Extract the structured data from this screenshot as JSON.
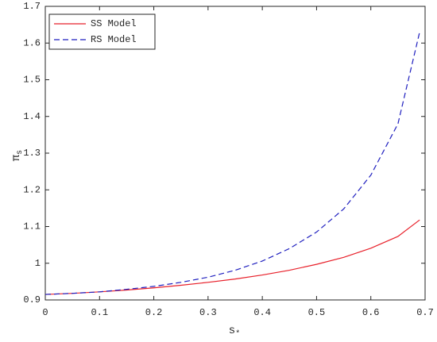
{
  "chart_data": {
    "type": "line",
    "xlabel": "s",
    "xlabel_sub": "*",
    "ylabel": "π",
    "ylabel_sub": "s",
    "x": [
      0,
      0.05,
      0.1,
      0.15,
      0.2,
      0.25,
      0.3,
      0.35,
      0.4,
      0.45,
      0.5,
      0.55,
      0.6,
      0.65,
      0.69
    ],
    "series": [
      {
        "name": "SS Model",
        "color": "#e8202a",
        "dash": false,
        "values": [
          0.915,
          0.918,
          0.922,
          0.927,
          0.933,
          0.94,
          0.948,
          0.957,
          0.968,
          0.981,
          0.997,
          1.016,
          1.041,
          1.073,
          1.118
        ]
      },
      {
        "name": "RS Model",
        "color": "#1f1fbf",
        "dash": true,
        "values": [
          0.915,
          0.918,
          0.922,
          0.929,
          0.937,
          0.948,
          0.962,
          0.981,
          1.006,
          1.04,
          1.085,
          1.148,
          1.24,
          1.38,
          1.63
        ]
      }
    ],
    "xlim": [
      0,
      0.7
    ],
    "xticks": [
      0,
      0.1,
      0.2,
      0.3,
      0.4,
      0.5,
      0.6,
      0.7
    ],
    "ylim": [
      0.9,
      1.7
    ],
    "yticks": [
      0.9,
      1,
      1.1,
      1.2,
      1.3,
      1.4,
      1.5,
      1.6,
      1.7
    ],
    "legend": "top-left",
    "grid": false
  }
}
